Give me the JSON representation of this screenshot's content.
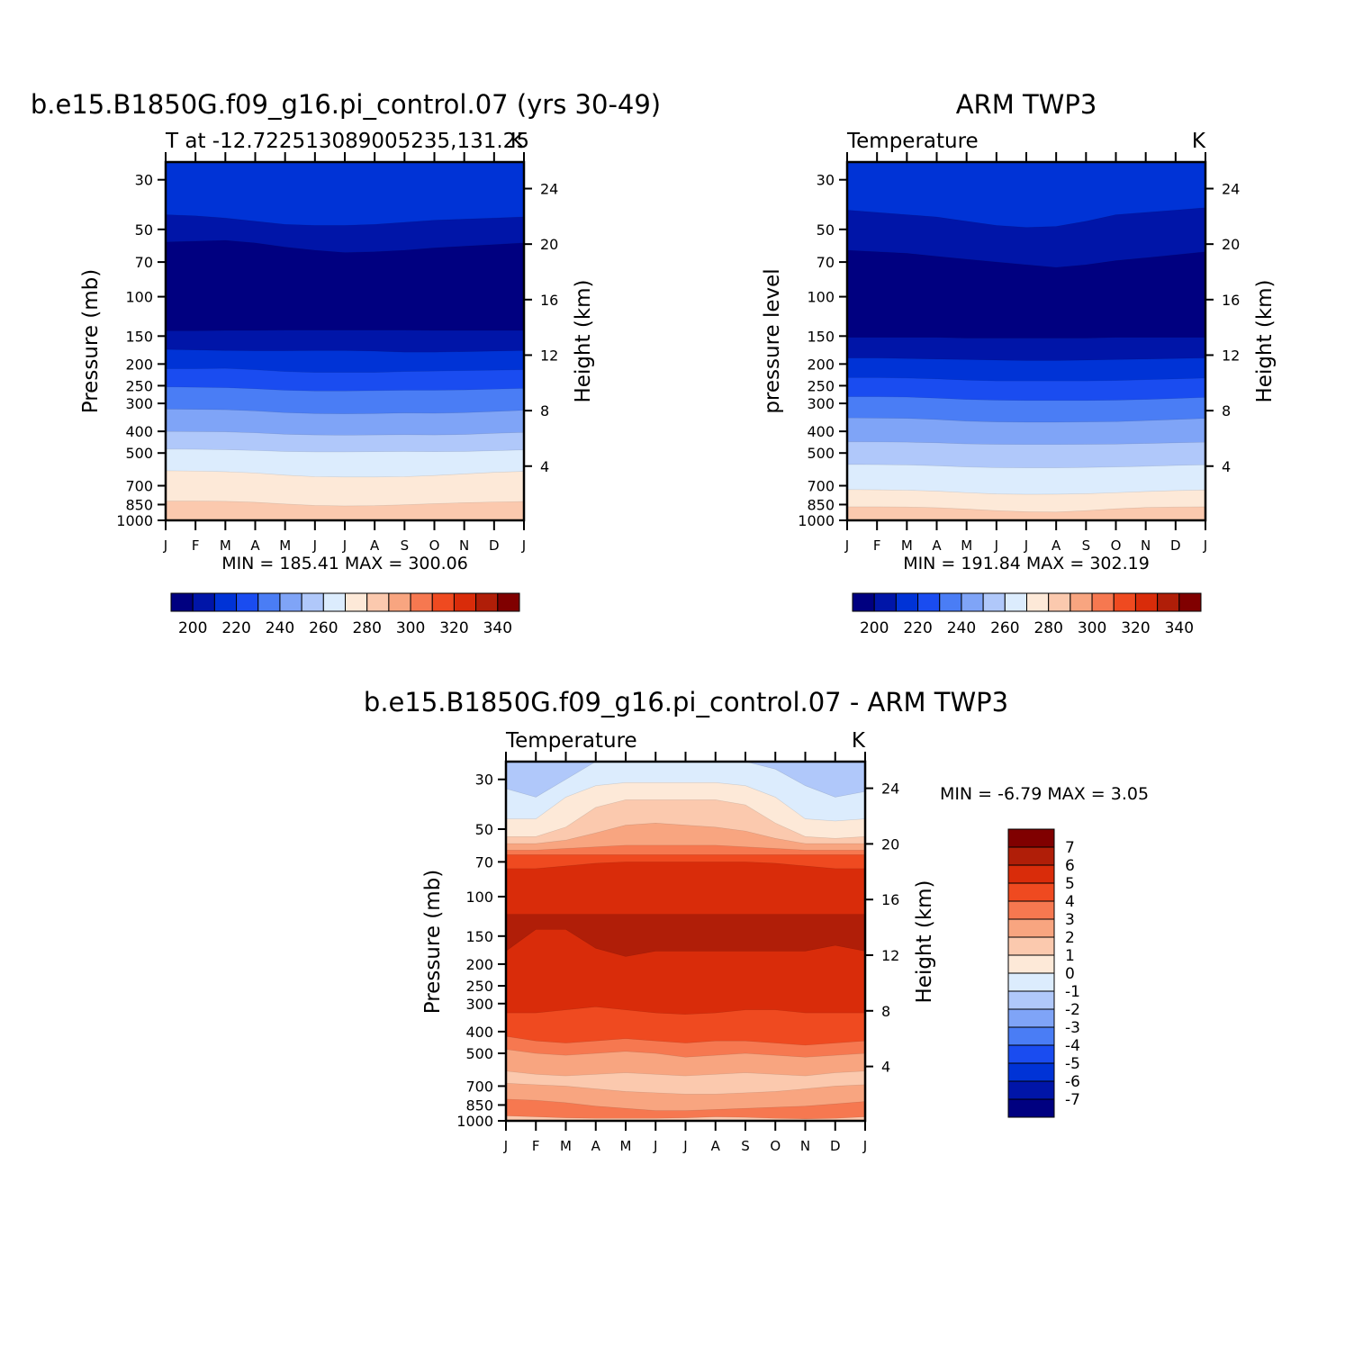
{
  "palettes": {
    "temperature": [
      "#000080",
      "#0015a8",
      "#0033d6",
      "#1a4cf0",
      "#4a7df5",
      "#7fa4f7",
      "#b0c8fa",
      "#dcecfd",
      "#fde9d8",
      "#fbc9ae",
      "#f8a580",
      "#f67850",
      "#ef4a20",
      "#d92c0a",
      "#b01e08",
      "#800000"
    ],
    "difference": [
      "#000080",
      "#0015a8",
      "#0033d6",
      "#1a4cf0",
      "#4a7df5",
      "#7fa4f7",
      "#b0c8fa",
      "#dcecfd",
      "#fde9d8",
      "#fbc9ae",
      "#f8a580",
      "#f67850",
      "#ef4a20",
      "#d92c0a",
      "#b01e08",
      "#800000"
    ]
  },
  "chart_data": [
    {
      "type": "contour",
      "id": "model",
      "title": "b.e15.B1850G.f09_g16.pi_control.07 (yrs 30-49)",
      "subtitle_left": "T at -12.722513089005235,131.25",
      "subtitle_right": "K",
      "ylabel": "Pressure (mb)",
      "ylabel_right": "Height (km)",
      "months": [
        "J",
        "F",
        "M",
        "A",
        "M",
        "J",
        "J",
        "A",
        "S",
        "O",
        "N",
        "D",
        "J"
      ],
      "pressure_ticks": [
        "30",
        "50",
        "70",
        "100",
        "150",
        "200",
        "250",
        "300",
        "400",
        "500",
        "700",
        "850",
        "1000"
      ],
      "height_ticks": [
        "24",
        "20",
        "16",
        "12",
        "8",
        "4"
      ],
      "minmax": "MIN = 185.41 MAX = 300.06",
      "min": 185.41,
      "max": 300.06,
      "levels": [
        "200",
        "220",
        "240",
        "260",
        "280",
        "300",
        "320",
        "340"
      ],
      "bands_top_to_bottom": [
        {
          "level_index": 2,
          "months": [
            0,
            0,
            0,
            0,
            0,
            0,
            0,
            0,
            0,
            0,
            0,
            0,
            0
          ]
        },
        {
          "level_index": 1,
          "boundary_hpa": [
            43,
            43.5,
            44.5,
            46,
            47.5,
            48,
            48,
            47.5,
            46.5,
            45.5,
            45,
            44.5,
            44
          ]
        },
        {
          "level_index": 0,
          "boundary_hpa": [
            57,
            56.5,
            56,
            57.5,
            60,
            62,
            63.5,
            63,
            62,
            60.5,
            59.5,
            58.5,
            57.5
          ]
        },
        {
          "level_index": 1,
          "boundary_hpa": [
            142,
            142,
            141.5,
            141.5,
            141,
            141,
            141,
            141,
            141,
            141.5,
            141.5,
            141.5,
            141.5
          ]
        },
        {
          "level_index": 2,
          "boundary_hpa": [
            172,
            173,
            174,
            174.5,
            174.5,
            174,
            174,
            175,
            177,
            177,
            176,
            175,
            174
          ]
        },
        {
          "level_index": 3,
          "boundary_hpa": [
            210,
            210,
            209,
            212,
            216,
            218,
            218,
            218,
            216,
            215,
            214,
            213,
            212
          ]
        },
        {
          "level_index": 4,
          "boundary_hpa": [
            253,
            254,
            255,
            258,
            262,
            264,
            264,
            263,
            262,
            262,
            261,
            259,
            257
          ]
        },
        {
          "level_index": 5,
          "boundary_hpa": [
            318,
            319,
            320,
            324,
            330,
            333,
            334,
            333,
            331,
            332,
            330,
            326,
            322
          ]
        },
        {
          "level_index": 6,
          "boundary_hpa": [
            400,
            401,
            402,
            406,
            412,
            415,
            416,
            415,
            414,
            415,
            413,
            408,
            404
          ]
        },
        {
          "level_index": 7,
          "boundary_hpa": [
            480,
            481,
            483,
            487,
            492,
            494,
            494,
            493,
            492,
            493,
            492,
            488,
            484
          ]
        },
        {
          "level_index": 8,
          "boundary_hpa": [
            600,
            602,
            606,
            614,
            628,
            638,
            640,
            640,
            638,
            630,
            620,
            610,
            604
          ]
        },
        {
          "level_index": 9,
          "boundary_hpa": [
            820,
            820,
            822,
            830,
            845,
            858,
            862,
            860,
            852,
            842,
            834,
            828,
            824
          ]
        }
      ]
    },
    {
      "type": "contour",
      "id": "obs",
      "title": "ARM TWP3",
      "subtitle_left": "Temperature",
      "subtitle_right": "K",
      "ylabel": "pressure level",
      "ylabel_right": "Height (km)",
      "months": [
        "J",
        "F",
        "M",
        "A",
        "M",
        "J",
        "J",
        "A",
        "S",
        "O",
        "N",
        "D",
        "J"
      ],
      "pressure_ticks": [
        "30",
        "50",
        "70",
        "100",
        "150",
        "200",
        "250",
        "300",
        "400",
        "500",
        "700",
        "850",
        "1000"
      ],
      "height_ticks": [
        "24",
        "20",
        "16",
        "12",
        "8",
        "4"
      ],
      "minmax": "MIN = 191.84 MAX = 302.19",
      "min": 191.84,
      "max": 302.19,
      "levels": [
        "200",
        "220",
        "240",
        "260",
        "280",
        "300",
        "320",
        "340"
      ],
      "bands_top_to_bottom": [
        {
          "level_index": 2,
          "months": [
            0,
            0,
            0,
            0,
            0,
            0,
            0,
            0,
            0,
            0,
            0,
            0,
            0
          ]
        },
        {
          "level_index": 1,
          "boundary_hpa": [
            41,
            42,
            43,
            44,
            46,
            48,
            49,
            48.5,
            46,
            43,
            42,
            41,
            40
          ]
        },
        {
          "level_index": 0,
          "boundary_hpa": [
            62,
            63,
            64,
            66,
            68,
            70,
            72,
            74,
            72,
            69,
            67,
            65,
            63
          ]
        },
        {
          "level_index": 1,
          "boundary_hpa": [
            152,
            152,
            152,
            152,
            153,
            153,
            153,
            153,
            153,
            152,
            152,
            152,
            152
          ]
        },
        {
          "level_index": 2,
          "boundary_hpa": [
            188,
            188,
            189,
            190,
            191,
            192,
            193,
            193,
            192,
            191,
            190,
            189,
            188
          ]
        },
        {
          "level_index": 3,
          "boundary_hpa": [
            230,
            230,
            231,
            233,
            236,
            238,
            238,
            238,
            238,
            237,
            235,
            233,
            231
          ]
        },
        {
          "level_index": 4,
          "boundary_hpa": [
            280,
            280,
            281,
            284,
            288,
            290,
            291,
            291,
            291,
            290,
            288,
            285,
            282
          ]
        },
        {
          "level_index": 5,
          "boundary_hpa": [
            348,
            349,
            350,
            354,
            360,
            363,
            364,
            364,
            363,
            362,
            358,
            354,
            350
          ]
        },
        {
          "level_index": 6,
          "boundary_hpa": [
            445,
            446,
            447,
            450,
            455,
            457,
            458,
            458,
            457,
            456,
            453,
            450,
            447
          ]
        },
        {
          "level_index": 7,
          "boundary_hpa": [
            562,
            563,
            565,
            570,
            577,
            581,
            582,
            582,
            580,
            577,
            573,
            568,
            564
          ]
        },
        {
          "level_index": 8,
          "boundary_hpa": [
            728,
            730,
            733,
            740,
            752,
            762,
            765,
            764,
            760,
            752,
            743,
            736,
            731
          ]
        },
        {
          "level_index": 9,
          "boundary_hpa": [
            870,
            870,
            872,
            878,
            890,
            905,
            915,
            918,
            905,
            888,
            876,
            872,
            870
          ]
        }
      ]
    },
    {
      "type": "contour",
      "id": "diff",
      "title": "b.e15.B1850G.f09_g16.pi_control.07 - ARM TWP3",
      "subtitle_left": "Temperature",
      "subtitle_right": "K",
      "ylabel": "Pressure (mb)",
      "ylabel_right": "Height (km)",
      "months": [
        "J",
        "F",
        "M",
        "A",
        "M",
        "J",
        "J",
        "A",
        "S",
        "O",
        "N",
        "D",
        "J"
      ],
      "pressure_ticks": [
        "30",
        "50",
        "70",
        "100",
        "150",
        "200",
        "250",
        "300",
        "400",
        "500",
        "700",
        "850",
        "1000"
      ],
      "height_ticks": [
        "24",
        "20",
        "16",
        "12",
        "8",
        "4"
      ],
      "minmax_label": "MIN = -6.79 MAX = 3.05",
      "min": -6.79,
      "max": 3.05,
      "levels": [
        "7",
        "6",
        "5",
        "4",
        "3",
        "2",
        "1",
        "0",
        "-1",
        "-2",
        "-3",
        "-4",
        "-5",
        "-6",
        "-7"
      ],
      "bands_top_to_bottom": [
        {
          "level_index": 9,
          "months": [
            0,
            0,
            0,
            0,
            0,
            0,
            0,
            0,
            0,
            0,
            0,
            0,
            0
          ]
        },
        {
          "level_index": 8,
          "boundary_hpa": [
            33,
            36,
            30,
            25,
            25,
            25,
            25,
            25,
            25,
            27,
            32,
            36,
            34
          ]
        },
        {
          "level_index": 7,
          "boundary_hpa": [
            45,
            45,
            36,
            32,
            31,
            31,
            31,
            31,
            32,
            36,
            45,
            46,
            45
          ]
        },
        {
          "level_index": 6,
          "boundary_hpa": [
            54,
            54,
            49,
            40,
            37,
            37,
            37,
            37,
            39,
            47,
            54,
            55,
            54
          ]
        },
        {
          "level_index": 5,
          "boundary_hpa": [
            58,
            58,
            56,
            52,
            48,
            47,
            48,
            49,
            51,
            55,
            58,
            58,
            58
          ]
        },
        {
          "level_index": 4,
          "boundary_hpa": [
            62,
            62,
            61,
            60,
            59,
            59,
            59,
            59,
            60,
            61,
            62,
            62,
            62
          ]
        },
        {
          "level_index": 3,
          "boundary_hpa": [
            65,
            65,
            65,
            65,
            65,
            65,
            65,
            65,
            65,
            65,
            65,
            65,
            65
          ]
        },
        {
          "level_index": 2,
          "boundary_hpa": [
            75,
            75,
            73,
            71,
            70,
            70,
            70,
            70,
            70,
            71,
            73,
            75,
            75
          ]
        },
        {
          "level_index": 1,
          "boundary_hpa": [
            120,
            120,
            120,
            120,
            120,
            120,
            120,
            120,
            120,
            120,
            120,
            120,
            120
          ]
        },
        {
          "level_index": 2,
          "boundary_hpa": [
            175,
            140,
            140,
            170,
            185,
            175,
            175,
            175,
            175,
            175,
            175,
            165,
            175
          ]
        },
        {
          "level_index": 3,
          "boundary_hpa": [
            330,
            330,
            320,
            310,
            320,
            330,
            335,
            330,
            320,
            320,
            330,
            330,
            330
          ]
        },
        {
          "level_index": 4,
          "boundary_hpa": [
            420,
            440,
            450,
            440,
            430,
            440,
            450,
            440,
            440,
            450,
            460,
            450,
            440
          ]
        },
        {
          "level_index": 5,
          "boundary_hpa": [
            480,
            500,
            510,
            500,
            490,
            500,
            520,
            510,
            500,
            510,
            520,
            510,
            500
          ]
        },
        {
          "level_index": 6,
          "boundary_hpa": [
            600,
            620,
            630,
            620,
            610,
            620,
            630,
            620,
            610,
            620,
            630,
            610,
            600
          ]
        },
        {
          "level_index": 5,
          "boundary_hpa": [
            680,
            690,
            700,
            720,
            740,
            750,
            760,
            760,
            750,
            740,
            720,
            700,
            690
          ]
        },
        {
          "level_index": 4,
          "boundary_hpa": [
            800,
            810,
            830,
            860,
            880,
            900,
            900,
            890,
            880,
            870,
            860,
            840,
            820
          ]
        },
        {
          "level_index": 6,
          "boundary_hpa": [
            950,
            960,
            970,
            975,
            975,
            975,
            970,
            960,
            965,
            975,
            980,
            975,
            960
          ]
        },
        {
          "level_index": 7,
          "boundary_hpa": [
            990,
            992,
            994,
            996,
            996,
            994,
            990,
            985,
            985,
            990,
            994,
            996,
            994
          ]
        }
      ]
    }
  ]
}
